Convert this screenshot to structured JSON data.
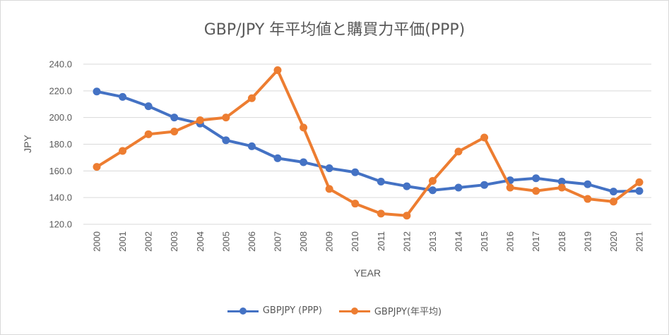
{
  "chart_data": {
    "type": "line",
    "title": "GBP/JPY 年平均値と購買力平価(PPP)",
    "xlabel": "YEAR",
    "ylabel": "JPY",
    "ylim": [
      120,
      240
    ],
    "yticks": [
      "120.0",
      "140.0",
      "160.0",
      "180.0",
      "200.0",
      "220.0",
      "240.0"
    ],
    "grid": true,
    "legend_position": "bottom",
    "categories": [
      "2000",
      "2001",
      "2002",
      "2003",
      "2004",
      "2005",
      "2006",
      "2007",
      "2008",
      "2009",
      "2010",
      "2011",
      "2012",
      "2013",
      "2014",
      "2015",
      "2016",
      "2017",
      "2018",
      "2019",
      "2020",
      "2021"
    ],
    "series": [
      {
        "name": "GBPJPY (PPP)",
        "color": "#4472c4",
        "values": [
          219.5,
          215.5,
          208.5,
          200.0,
          195.5,
          183.0,
          178.5,
          169.5,
          166.5,
          162.0,
          159.0,
          152.0,
          148.5,
          145.5,
          147.5,
          149.5,
          153.0,
          154.5,
          152.0,
          150.0,
          144.5,
          145.0
        ]
      },
      {
        "name": "GBPJPY(年平均)",
        "color": "#ed7d31",
        "values": [
          163.0,
          175.0,
          187.5,
          189.5,
          198.0,
          200.0,
          214.5,
          235.5,
          192.5,
          146.5,
          135.5,
          128.0,
          126.5,
          152.5,
          174.5,
          185.0,
          147.5,
          145.0,
          147.5,
          139.0,
          137.0,
          151.5
        ]
      }
    ]
  }
}
